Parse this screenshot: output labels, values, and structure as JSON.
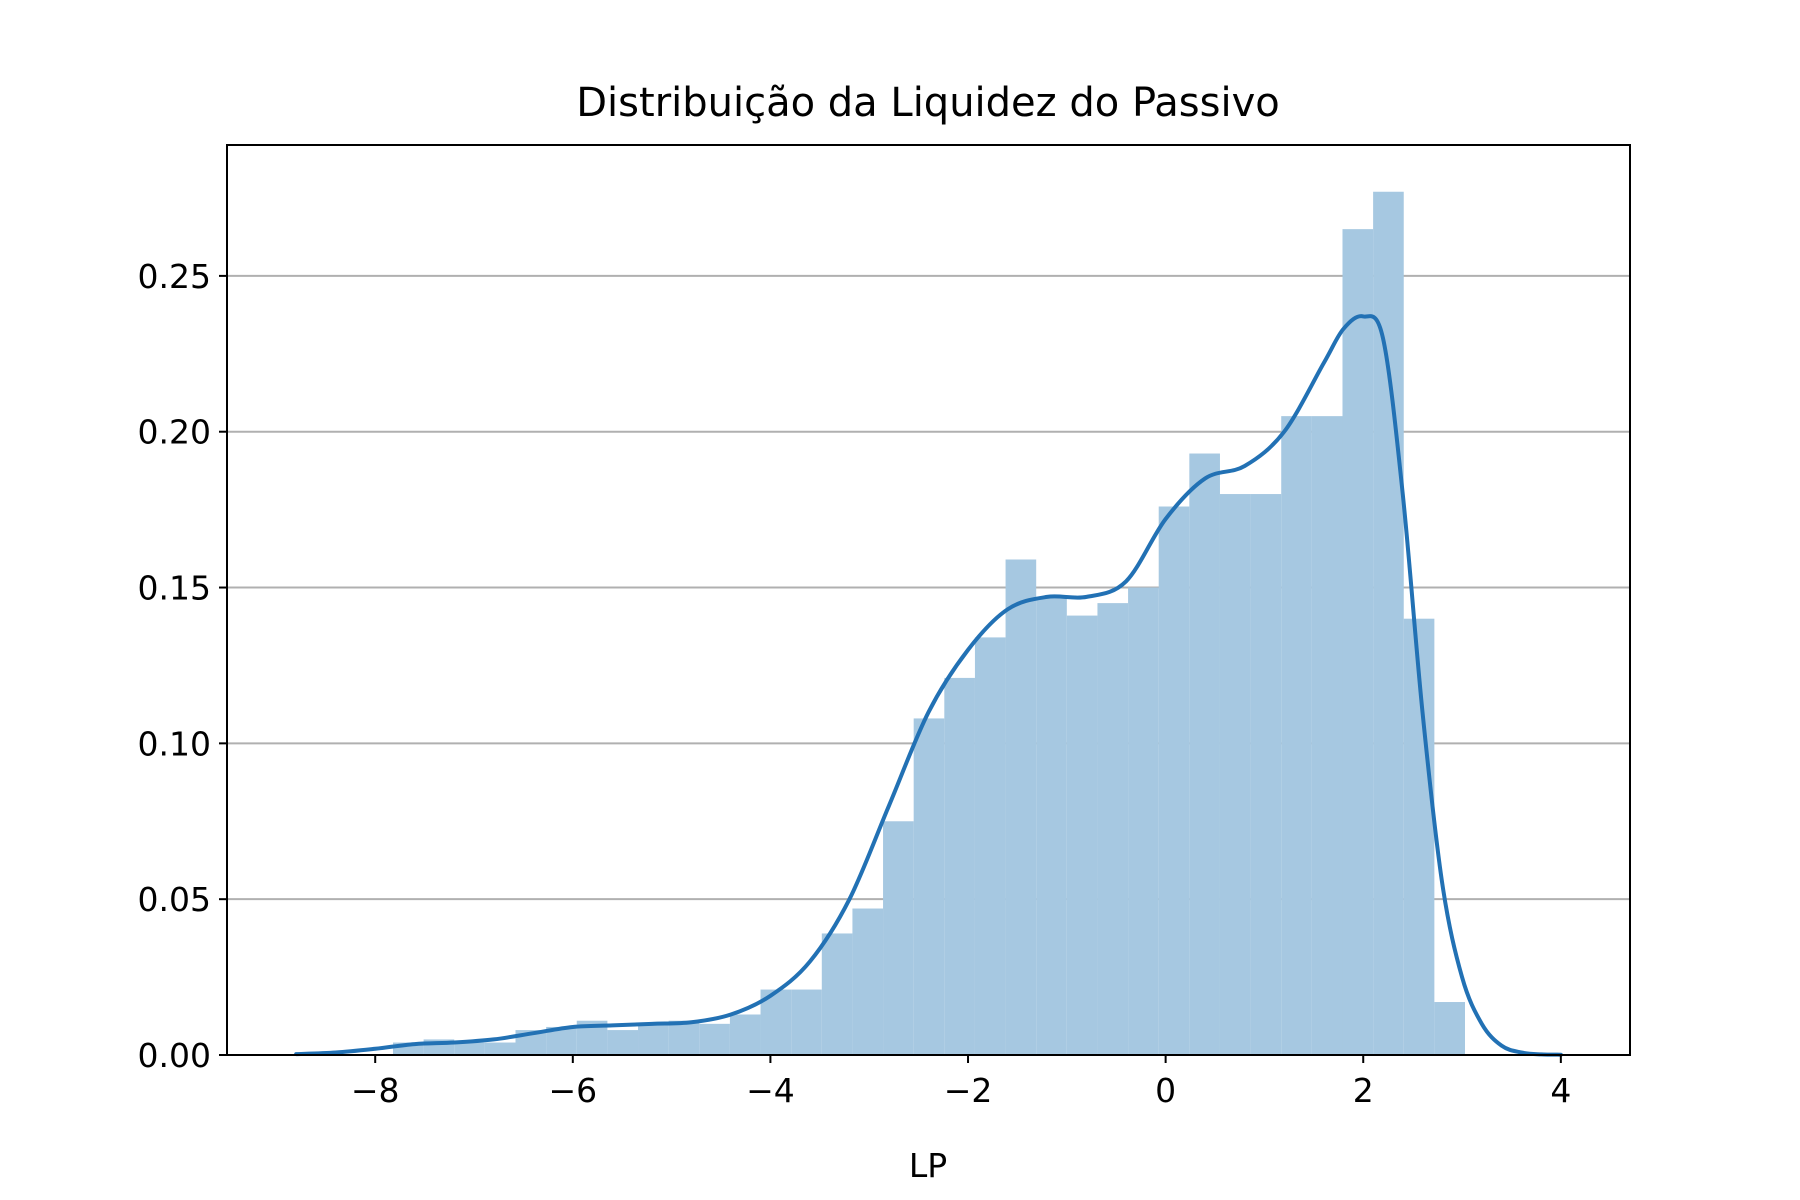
{
  "chart_data": {
    "type": "bar",
    "title": "Distribuição da Liquidez do Passivo",
    "xlabel": "LP",
    "ylabel": "",
    "xlim": [
      -9.5,
      4.7
    ],
    "ylim": [
      0.0,
      0.292
    ],
    "grid": "y",
    "legend": "none",
    "x_ticks": [
      -8,
      -6,
      -4,
      -2,
      0,
      2,
      4
    ],
    "x_tick_labels": [
      "−8",
      "−6",
      "−4",
      "−2",
      "0",
      "2",
      "4"
    ],
    "y_ticks": [
      0.0,
      0.05,
      0.1,
      0.15,
      0.2,
      0.25
    ],
    "y_tick_labels": [
      "0.00",
      "0.05",
      "0.10",
      "0.15",
      "0.20",
      "0.25"
    ],
    "bar_color": "#a6c8e1",
    "line_color": "#2271b4",
    "histogram": {
      "bin_edges": [
        -7.82,
        -7.51,
        -7.2,
        -6.89,
        -6.58,
        -6.27,
        -5.96,
        -5.65,
        -5.34,
        -5.03,
        -4.72,
        -4.41,
        -4.1,
        -3.79,
        -3.48,
        -3.17,
        -2.86,
        -2.55,
        -2.24,
        -1.93,
        -1.62,
        -1.31,
        -1.0,
        -0.69,
        -0.38,
        -0.07,
        0.24,
        0.55,
        0.86,
        1.17,
        1.48,
        1.79,
        2.1,
        2.41,
        2.72,
        3.03
      ],
      "densities": [
        0.004,
        0.005,
        0.004,
        0.004,
        0.008,
        0.009,
        0.011,
        0.008,
        0.01,
        0.011,
        0.01,
        0.013,
        0.021,
        0.021,
        0.039,
        0.047,
        0.075,
        0.108,
        0.121,
        0.134,
        0.159,
        0.147,
        0.141,
        0.145,
        0.15,
        0.176,
        0.193,
        0.18,
        0.18,
        0.205,
        0.205,
        0.265,
        0.277,
        0.14,
        0.017
      ]
    },
    "kde": {
      "x": [
        -8.8,
        -8.4,
        -8.0,
        -7.6,
        -7.2,
        -6.8,
        -6.4,
        -6.0,
        -5.6,
        -5.2,
        -4.8,
        -4.4,
        -4.0,
        -3.6,
        -3.2,
        -2.8,
        -2.4,
        -2.0,
        -1.6,
        -1.2,
        -0.8,
        -0.4,
        0.0,
        0.4,
        0.8,
        1.2,
        1.6,
        1.8,
        2.0,
        2.2,
        2.4,
        2.6,
        2.8,
        3.0,
        3.2,
        3.4,
        3.6,
        3.8,
        4.0
      ],
      "y": [
        0.0003,
        0.0008,
        0.002,
        0.0035,
        0.004,
        0.005,
        0.007,
        0.009,
        0.0095,
        0.01,
        0.0105,
        0.013,
        0.019,
        0.03,
        0.05,
        0.08,
        0.11,
        0.13,
        0.143,
        0.147,
        0.147,
        0.152,
        0.172,
        0.185,
        0.189,
        0.2,
        0.222,
        0.233,
        0.237,
        0.23,
        0.18,
        0.11,
        0.055,
        0.025,
        0.01,
        0.003,
        0.0008,
        0.0002,
        0.0001
      ]
    }
  }
}
